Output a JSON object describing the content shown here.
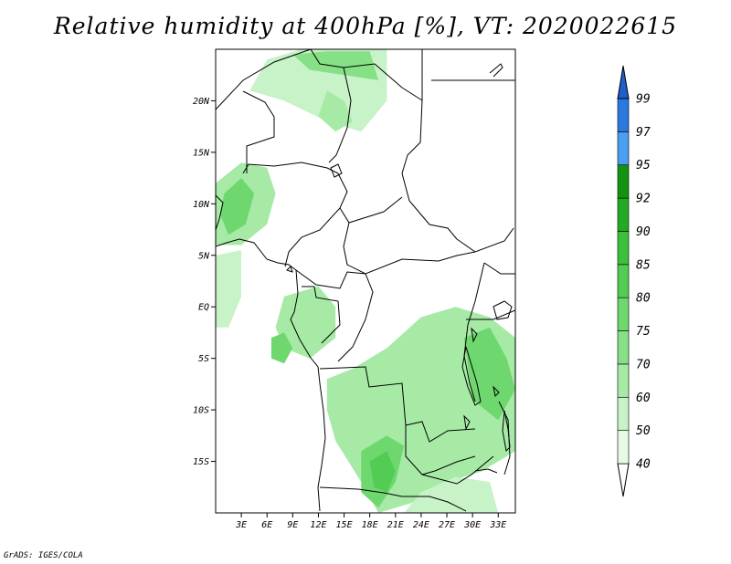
{
  "title": "Relative humidity at 400hPa [%], VT: 2020022615",
  "credit": "GrADS: IGES/COLA",
  "map": {
    "lon_range": [
      0,
      35
    ],
    "lat_range": [
      -20,
      25
    ],
    "lat_ticks": [
      {
        "lat": 20,
        "label": "20N"
      },
      {
        "lat": 15,
        "label": "15N"
      },
      {
        "lat": 10,
        "label": "10N"
      },
      {
        "lat": 5,
        "label": "5N"
      },
      {
        "lat": 0,
        "label": "EQ"
      },
      {
        "lat": -5,
        "label": "5S"
      },
      {
        "lat": -10,
        "label": "10S"
      },
      {
        "lat": -15,
        "label": "15S"
      }
    ],
    "lon_ticks": [
      {
        "lon": 3,
        "label": "3E"
      },
      {
        "lon": 6,
        "label": "6E"
      },
      {
        "lon": 9,
        "label": "9E"
      },
      {
        "lon": 12,
        "label": "12E"
      },
      {
        "lon": 15,
        "label": "15E"
      },
      {
        "lon": 18,
        "label": "18E"
      },
      {
        "lon": 21,
        "label": "21E"
      },
      {
        "lon": 24,
        "label": "24E"
      },
      {
        "lon": 27,
        "label": "27E"
      },
      {
        "lon": 30,
        "label": "30E"
      },
      {
        "lon": 33,
        "label": "33E"
      }
    ]
  },
  "colorbar": {
    "levels": [
      {
        "label": "40",
        "color": "#e6fae6"
      },
      {
        "label": "50",
        "color": "#c8f2c8"
      },
      {
        "label": "60",
        "color": "#a6eaa6"
      },
      {
        "label": "70",
        "color": "#86e086"
      },
      {
        "label": "75",
        "color": "#6ed86e"
      },
      {
        "label": "80",
        "color": "#52cc52"
      },
      {
        "label": "85",
        "color": "#3cc03c"
      },
      {
        "label": "90",
        "color": "#22aa22"
      },
      {
        "label": "92",
        "color": "#129412"
      },
      {
        "label": "95",
        "color": "#4a9ff0"
      },
      {
        "label": "97",
        "color": "#2a78e0"
      },
      {
        "label": "99",
        "color": "#1f5fcc"
      }
    ],
    "under_color": "#ffffff",
    "over_color": "#1f5fcc"
  },
  "humidity_regions": [
    {
      "name": "sahel-north-band",
      "level": 1,
      "points": [
        [
          6,
          24
        ],
        [
          10,
          25
        ],
        [
          20,
          25
        ],
        [
          20,
          20
        ],
        [
          17,
          17
        ],
        [
          13,
          18
        ],
        [
          8,
          20
        ],
        [
          4,
          21
        ]
      ]
    },
    {
      "name": "sahel-north-core",
      "level": 3,
      "points": [
        [
          9,
          24.5
        ],
        [
          13,
          24.8
        ],
        [
          18,
          24.8
        ],
        [
          19,
          22
        ],
        [
          15,
          22.5
        ],
        [
          11,
          23
        ]
      ]
    },
    {
      "name": "niger-moist",
      "level": 2,
      "points": [
        [
          13,
          21
        ],
        [
          15,
          20
        ],
        [
          16,
          18
        ],
        [
          14,
          17
        ],
        [
          12,
          18.5
        ]
      ]
    },
    {
      "name": "west-coast-band",
      "level": 2,
      "points": [
        [
          0,
          12
        ],
        [
          3,
          14
        ],
        [
          6,
          13.5
        ],
        [
          7,
          11
        ],
        [
          6,
          8
        ],
        [
          3,
          6
        ],
        [
          0,
          6
        ]
      ]
    },
    {
      "name": "west-coast-core",
      "level": 4,
      "points": [
        [
          1,
          11
        ],
        [
          3,
          12.5
        ],
        [
          4.5,
          11
        ],
        [
          3.5,
          8
        ],
        [
          1.5,
          7
        ],
        [
          0.5,
          9
        ]
      ]
    },
    {
      "name": "gulf-guinea-patch",
      "level": 1,
      "points": [
        [
          0,
          5
        ],
        [
          3,
          5.5
        ],
        [
          3,
          1
        ],
        [
          1.5,
          -2
        ],
        [
          0,
          -2
        ]
      ]
    },
    {
      "name": "gabon-congo",
      "level": 2,
      "points": [
        [
          8,
          1
        ],
        [
          12,
          2
        ],
        [
          14,
          0
        ],
        [
          14,
          -3
        ],
        [
          11,
          -5
        ],
        [
          8,
          -4
        ],
        [
          7,
          -2
        ]
      ]
    },
    {
      "name": "congo-coast-core",
      "level": 4,
      "points": [
        [
          6.5,
          -3
        ],
        [
          8,
          -2.5
        ],
        [
          9,
          -4
        ],
        [
          8,
          -5.5
        ],
        [
          6.5,
          -5
        ]
      ]
    },
    {
      "name": "south-central-main",
      "level": 2,
      "points": [
        [
          13,
          -7
        ],
        [
          16,
          -6
        ],
        [
          20,
          -4
        ],
        [
          24,
          -1
        ],
        [
          28,
          0
        ],
        [
          32,
          -1
        ],
        [
          35,
          -3
        ],
        [
          35,
          -14
        ],
        [
          31,
          -16
        ],
        [
          27,
          -17
        ],
        [
          23,
          -19
        ],
        [
          19,
          -20
        ],
        [
          17,
          -17
        ],
        [
          14,
          -13
        ],
        [
          13,
          -10
        ]
      ]
    },
    {
      "name": "south-central-core",
      "level": 4,
      "points": [
        [
          17,
          -14
        ],
        [
          20,
          -12.5
        ],
        [
          22,
          -13.5
        ],
        [
          21,
          -17
        ],
        [
          19,
          -19.5
        ],
        [
          17,
          -18
        ]
      ]
    },
    {
      "name": "east-lakes-core",
      "level": 4,
      "points": [
        [
          29,
          -3
        ],
        [
          32,
          -2
        ],
        [
          34,
          -5
        ],
        [
          35,
          -8
        ],
        [
          33,
          -11
        ],
        [
          30,
          -9
        ]
      ]
    },
    {
      "name": "angola-south-deep",
      "level": 5,
      "points": [
        [
          18,
          -15
        ],
        [
          20,
          -14
        ],
        [
          21,
          -16
        ],
        [
          20,
          -18
        ],
        [
          18.5,
          -17.5
        ]
      ]
    },
    {
      "name": "southeast-strip",
      "level": 1,
      "points": [
        [
          24,
          -18
        ],
        [
          28,
          -16.5
        ],
        [
          32,
          -17
        ],
        [
          33,
          -20
        ],
        [
          22,
          -20
        ]
      ]
    }
  ]
}
